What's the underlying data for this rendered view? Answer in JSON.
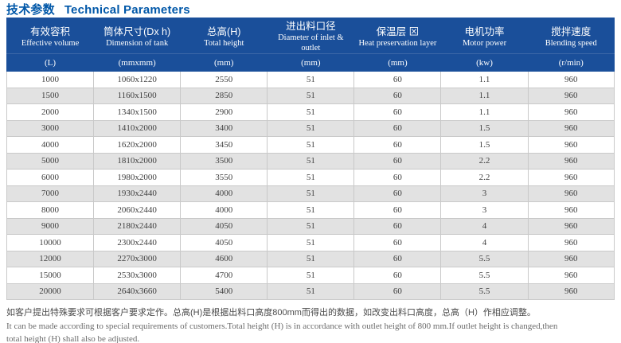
{
  "page_title": {
    "zh": "技术参数",
    "en": "Technical Parameters"
  },
  "table": {
    "columns": [
      {
        "zh": "有效容积",
        "en": "Effective volume",
        "unit": "(L)"
      },
      {
        "zh": "筒体尺寸(Dx h)",
        "en": "Dimension of tank",
        "unit": "(mmxmm)"
      },
      {
        "zh": "总高(H)",
        "en": "Total height",
        "unit": "(mm)"
      },
      {
        "zh": "进出料口径",
        "en": "Diameter of inlet & outlet",
        "unit": "(mm)"
      },
      {
        "zh": "保温层 ⊠",
        "en": "Heat preservation layer",
        "unit": "(mm)"
      },
      {
        "zh": "电机功率",
        "en": "Motor power",
        "unit": "(kw)"
      },
      {
        "zh": "搅拌速度",
        "en": "Blending speed",
        "unit": "(r/min)"
      }
    ],
    "rows": [
      [
        "1000",
        "1060x1220",
        "2550",
        "51",
        "60",
        "1.1",
        "960"
      ],
      [
        "1500",
        "1160x1500",
        "2850",
        "51",
        "60",
        "1.1",
        "960"
      ],
      [
        "2000",
        "1340x1500",
        "2900",
        "51",
        "60",
        "1.1",
        "960"
      ],
      [
        "3000",
        "1410x2000",
        "3400",
        "51",
        "60",
        "1.5",
        "960"
      ],
      [
        "4000",
        "1620x2000",
        "3450",
        "51",
        "60",
        "1.5",
        "960"
      ],
      [
        "5000",
        "1810x2000",
        "3500",
        "51",
        "60",
        "2.2",
        "960"
      ],
      [
        "6000",
        "1980x2000",
        "3550",
        "51",
        "60",
        "2.2",
        "960"
      ],
      [
        "7000",
        "1930x2440",
        "4000",
        "51",
        "60",
        "3",
        "960"
      ],
      [
        "8000",
        "2060x2440",
        "4000",
        "51",
        "60",
        "3",
        "960"
      ],
      [
        "9000",
        "2180x2440",
        "4050",
        "51",
        "60",
        "4",
        "960"
      ],
      [
        "10000",
        "2300x2440",
        "4050",
        "51",
        "60",
        "4",
        "960"
      ],
      [
        "12000",
        "2270x3000",
        "4600",
        "51",
        "60",
        "5.5",
        "960"
      ],
      [
        "15000",
        "2530x3000",
        "4700",
        "51",
        "60",
        "5.5",
        "960"
      ],
      [
        "20000",
        "2640x3660",
        "5400",
        "51",
        "60",
        "5.5",
        "960"
      ]
    ]
  },
  "footer": {
    "note_zh": "如客户提出特殊要求可根据客户要求定作。总高(H)是根据出料口高度800mm而得出的数据，如改变出料口高度，总高（H）作相应调整。",
    "note_en_line1": "It can be made according to special requirements of customers.Total height (H) is in accordance with outlet height of 800 mm.If outlet height is changed,then",
    "note_en_line2": "total height (H) shall also be adjusted."
  },
  "colors": {
    "title_blue": "#0057a8",
    "header_bg": "#1a4f9a",
    "header_divider": "#3d68a8",
    "row_alt_gray": "#e2e2e2",
    "cell_border": "#c9c9c9"
  }
}
